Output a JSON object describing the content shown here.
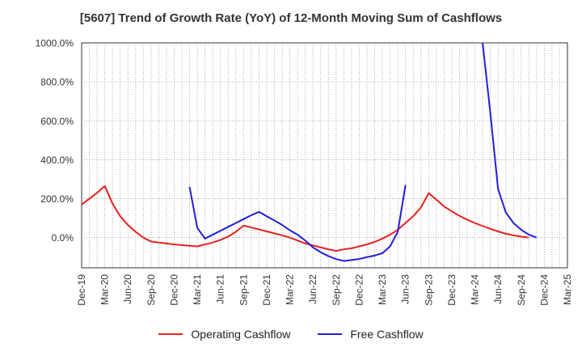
{
  "chart_data": {
    "type": "line",
    "title": "[5607]  Trend of Growth Rate (YoY) of 12-Month Moving Sum of Cashflows",
    "xlabel": "",
    "ylabel": "",
    "y_tick_labels": [
      "0.0%",
      "200.0%",
      "400.0%",
      "600.0%",
      "800.0%",
      "1000.0%"
    ],
    "ylim": [
      -155,
      1000
    ],
    "x_tick_labels": [
      "Dec-19",
      "Mar-20",
      "Jun-20",
      "Sep-20",
      "Dec-20",
      "Mar-21",
      "Jun-21",
      "Sep-21",
      "Dec-21",
      "Mar-22",
      "Jun-22",
      "Sep-22",
      "Dec-22",
      "Mar-23",
      "Jun-23",
      "Sep-23",
      "Dec-23",
      "Mar-24",
      "Jun-24",
      "Sep-24",
      "Dec-24",
      "Mar-25"
    ],
    "x_months": [
      "2019-12",
      "2020-01",
      "2020-02",
      "2020-03",
      "2020-04",
      "2020-05",
      "2020-06",
      "2020-07",
      "2020-08",
      "2020-09",
      "2020-10",
      "2020-11",
      "2020-12",
      "2021-01",
      "2021-02",
      "2021-03",
      "2021-04",
      "2021-05",
      "2021-06",
      "2021-07",
      "2021-08",
      "2021-09",
      "2021-10",
      "2021-11",
      "2021-12",
      "2022-01",
      "2022-02",
      "2022-03",
      "2022-04",
      "2022-05",
      "2022-06",
      "2022-07",
      "2022-08",
      "2022-09",
      "2022-10",
      "2022-11",
      "2022-12",
      "2023-01",
      "2023-02",
      "2023-03",
      "2023-04",
      "2023-05",
      "2023-06",
      "2023-07",
      "2023-08",
      "2023-09",
      "2023-10",
      "2023-11",
      "2023-12",
      "2024-01",
      "2024-02",
      "2024-03",
      "2024-04",
      "2024-05",
      "2024-06",
      "2024-07",
      "2024-08",
      "2024-09",
      "2024-10",
      "2024-11",
      "2024-12",
      "2025-01",
      "2025-02",
      "2025-03"
    ],
    "grid": true,
    "legend_position": "bottom",
    "series": [
      {
        "name": "Operating Cashflow",
        "color": "#e8211f",
        "values": [
          170,
          200,
          230,
          265,
          175,
          110,
          65,
          30,
          0,
          -20,
          -25,
          -30,
          -35,
          -38,
          -42,
          -45,
          -35,
          -25,
          -12,
          5,
          30,
          62,
          52,
          42,
          32,
          22,
          12,
          0,
          -15,
          -30,
          -40,
          -50,
          -60,
          -68,
          -60,
          -55,
          -45,
          -35,
          -22,
          -5,
          15,
          40,
          75,
          110,
          155,
          228,
          195,
          160,
          135,
          112,
          92,
          75,
          60,
          45,
          32,
          20,
          12,
          5,
          0,
          null,
          null,
          null,
          null,
          null
        ]
      },
      {
        "name": "Free Cashflow",
        "color": "#1f1fd6",
        "values": [
          null,
          null,
          null,
          null,
          null,
          null,
          null,
          null,
          null,
          null,
          null,
          null,
          null,
          null,
          260,
          50,
          -5,
          15,
          35,
          55,
          75,
          95,
          115,
          132,
          110,
          88,
          65,
          38,
          15,
          -15,
          -50,
          -75,
          -95,
          -110,
          -120,
          -115,
          -110,
          -100,
          -92,
          -80,
          -45,
          30,
          270,
          null,
          null,
          null,
          null,
          null,
          null,
          null,
          null,
          null,
          1000,
          640,
          250,
          130,
          75,
          40,
          15,
          0,
          null,
          null,
          null,
          null
        ]
      }
    ]
  }
}
